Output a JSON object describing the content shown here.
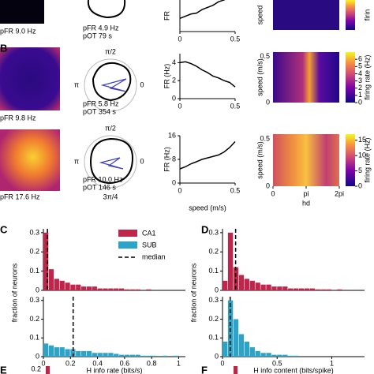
{
  "panel_labels": [
    "B",
    "C",
    "D",
    "E",
    "F"
  ],
  "rows": [
    {
      "rate_map_label": "pFR 9.0 Hz",
      "polar_pfr": "pFR 4.9 Hz",
      "polar_pot": "pOT 79 s",
      "polar_ticks": [],
      "speed_curve": {
        "ylabel": "FR",
        "xticks": [
          0,
          0.5
        ],
        "xlim": [
          0,
          0.5
        ],
        "ylim": [
          0,
          9
        ],
        "yticks": [],
        "x": [
          0,
          0.05,
          0.1,
          0.15,
          0.2,
          0.25,
          0.3,
          0.35,
          0.4,
          0.45,
          0.5
        ],
        "values": [
          3,
          3.5,
          4,
          4.2,
          5,
          5.5,
          6,
          6.8,
          7.2,
          8,
          8.5
        ]
      },
      "heatmap": {
        "ylabel": "speed",
        "cbar_label": "firin"
      }
    },
    {
      "rate_map_label": "pFR 9.8 Hz",
      "polar_pfr": "pFR 5.8 Hz",
      "polar_pot": "pOT 354 s",
      "polar_ticks": [
        "π/2",
        "π",
        "0"
      ],
      "speed_curve": {
        "ylabel": "FR (Hz)",
        "xticks": [
          0,
          0.5
        ],
        "xlim": [
          0,
          0.5
        ],
        "ylim": [
          0,
          5
        ],
        "yticks": [
          0,
          2,
          4
        ],
        "x": [
          0,
          0.05,
          0.1,
          0.15,
          0.2,
          0.25,
          0.3,
          0.35,
          0.4,
          0.45,
          0.5
        ],
        "values": [
          4,
          4.1,
          3.9,
          3.6,
          3.2,
          2.9,
          2.5,
          2.3,
          2,
          1.8,
          1.3
        ]
      },
      "heatmap": {
        "ylabel": "speed (m/s)",
        "yticks": [
          0,
          0.5
        ],
        "ylim": [
          0,
          0.55
        ],
        "cbar_label": "firing rate (Hz)",
        "cbar_ylim": [
          0,
          7
        ],
        "cbar_ticks": [
          0,
          1,
          2,
          3,
          4,
          5,
          6
        ]
      }
    },
    {
      "rate_map_label": "pFR 17.6 Hz",
      "polar_pfr": "pFR 10.0 Hz",
      "polar_pot": "pOT 146 s",
      "polar_ticks": [
        "π/2",
        "π",
        "0",
        "3π/4"
      ],
      "speed_curve": {
        "ylabel": "FR (Hz)",
        "xlabel": "speed (m/s)",
        "xticks": [
          0,
          0.5
        ],
        "xlim": [
          0,
          0.5
        ],
        "ylim": [
          0,
          16
        ],
        "yticks": [
          0,
          8,
          16
        ],
        "x": [
          0,
          0.05,
          0.1,
          0.15,
          0.2,
          0.25,
          0.3,
          0.35,
          0.4,
          0.45,
          0.5
        ],
        "values": [
          4.8,
          5.5,
          6.5,
          7.2,
          8,
          8.5,
          9,
          9.5,
          10.5,
          12,
          14
        ]
      },
      "heatmap": {
        "ylabel": "speed (m/s)",
        "yticks": [
          0,
          0.5
        ],
        "ylim": [
          0,
          0.55
        ],
        "xlabel": "hd",
        "xlim": [
          0,
          6.2832
        ],
        "xticks": [
          0,
          {
            "value": 3.1416,
            "label": "pi"
          },
          {
            "value": 6.2832,
            "label": "2pi"
          }
        ],
        "cbar_label": "firing rate (Hz)",
        "cbar_ylim": [
          0,
          17
        ],
        "cbar_ticks": [
          0,
          5,
          10,
          15
        ]
      }
    }
  ],
  "chart_data": [
    {
      "type": "histogram",
      "ylabel": "fraction of neurons",
      "xlabel": "H info rate (bits/s)",
      "xlim": [
        0,
        1.05
      ],
      "xticks": [
        0,
        0.2,
        0.4,
        0.6,
        0.8,
        1
      ],
      "ylim": [
        0,
        0.32
      ],
      "yticks": [
        0,
        0.1,
        0.2,
        0.3
      ],
      "bins": [
        0,
        0.04,
        0.08,
        0.12,
        0.16,
        0.2,
        0.24,
        0.28,
        0.32,
        0.36,
        0.4,
        0.44,
        0.48,
        0.52,
        0.56,
        0.6,
        0.64,
        0.68,
        0.72,
        0.76,
        0.8,
        0.84,
        0.88,
        0.92,
        0.96,
        1
      ],
      "legend": [
        "median"
      ],
      "series": [
        {
          "name": "CA1",
          "color": "#c0264b",
          "median": 0.03,
          "values": [
            0.3,
            0.11,
            0.06,
            0.05,
            0.04,
            0.03,
            0.03,
            0.02,
            0.02,
            0.02,
            0.01,
            0.01,
            0.01,
            0.01,
            0.01,
            0.005,
            0.005,
            0.005,
            0,
            0.005,
            0,
            0,
            0,
            0,
            0
          ]
        },
        {
          "name": "SUB",
          "color": "#2ea3c8",
          "median": 0.22,
          "values": [
            0.07,
            0.06,
            0.05,
            0.05,
            0.04,
            0.04,
            0.03,
            0.03,
            0.03,
            0.02,
            0.02,
            0.02,
            0.02,
            0.015,
            0.01,
            0.01,
            0.01,
            0.01,
            0.005,
            0.005,
            0.005,
            0,
            0.005,
            0,
            0.005
          ]
        }
      ]
    },
    {
      "type": "histogram",
      "ylabel": "fraction of neurons",
      "xlabel": "H info content (bits/spike)",
      "xlim": [
        0,
        1.3
      ],
      "xticks": [
        0,
        0.5,
        1
      ],
      "ylim": [
        0,
        0.32
      ],
      "yticks": [
        0,
        0.1,
        0.2,
        0.3
      ],
      "bins": [
        0,
        0.05,
        0.1,
        0.15,
        0.2,
        0.25,
        0.3,
        0.35,
        0.4,
        0.45,
        0.5,
        0.55,
        0.6,
        0.65,
        0.7,
        0.75,
        0.8,
        0.85,
        0.9,
        0.95,
        1,
        1.05,
        1.1,
        1.15,
        1.2,
        1.25,
        1.3
      ],
      "series": [
        {
          "name": "CA1",
          "color": "#c0264b",
          "median": 0.12,
          "values": [
            0.05,
            0.3,
            0.12,
            0.08,
            0.06,
            0.05,
            0.04,
            0.03,
            0.03,
            0.02,
            0.02,
            0.02,
            0.01,
            0.01,
            0.01,
            0.01,
            0.01,
            0.005,
            0.005,
            0.005,
            0,
            0.005,
            0,
            0,
            0,
            0
          ]
        },
        {
          "name": "SUB",
          "color": "#2ea3c8",
          "median": 0.07,
          "values": [
            0.08,
            0.3,
            0.2,
            0.12,
            0.08,
            0.05,
            0.03,
            0.02,
            0.02,
            0.01,
            0.01,
            0.01,
            0.005,
            0.005,
            0,
            0,
            0,
            0,
            0,
            0,
            0,
            0,
            0,
            0,
            0,
            0
          ]
        }
      ]
    }
  ],
  "bottom_tick": 0.2
}
